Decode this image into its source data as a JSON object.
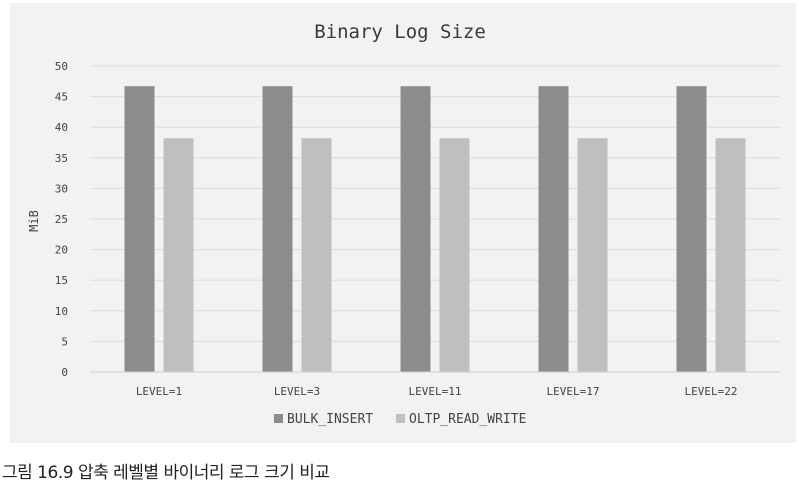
{
  "chart_data": {
    "type": "bar",
    "title": "Binary Log Size",
    "xlabel": "",
    "ylabel": "MiB",
    "categories": [
      "LEVEL=1",
      "LEVEL=3",
      "LEVEL=11",
      "LEVEL=17",
      "LEVEL=22"
    ],
    "series": [
      {
        "name": "BULK_INSERT",
        "values": [
          46.7,
          46.7,
          46.7,
          46.7,
          46.7
        ],
        "color": "#8c8c8c"
      },
      {
        "name": "OLTP_READ_WRITE",
        "values": [
          38.2,
          38.2,
          38.2,
          38.2,
          38.2
        ],
        "color": "#bfbfbf"
      }
    ],
    "ylim": [
      0,
      50
    ],
    "yticks": [
      0,
      5,
      10,
      15,
      20,
      25,
      30,
      35,
      40,
      45,
      50
    ],
    "grid": true,
    "legend_position": "bottom"
  },
  "caption": "그림 16.9 압축 레벨별 바이너리 로그 크기 비교"
}
